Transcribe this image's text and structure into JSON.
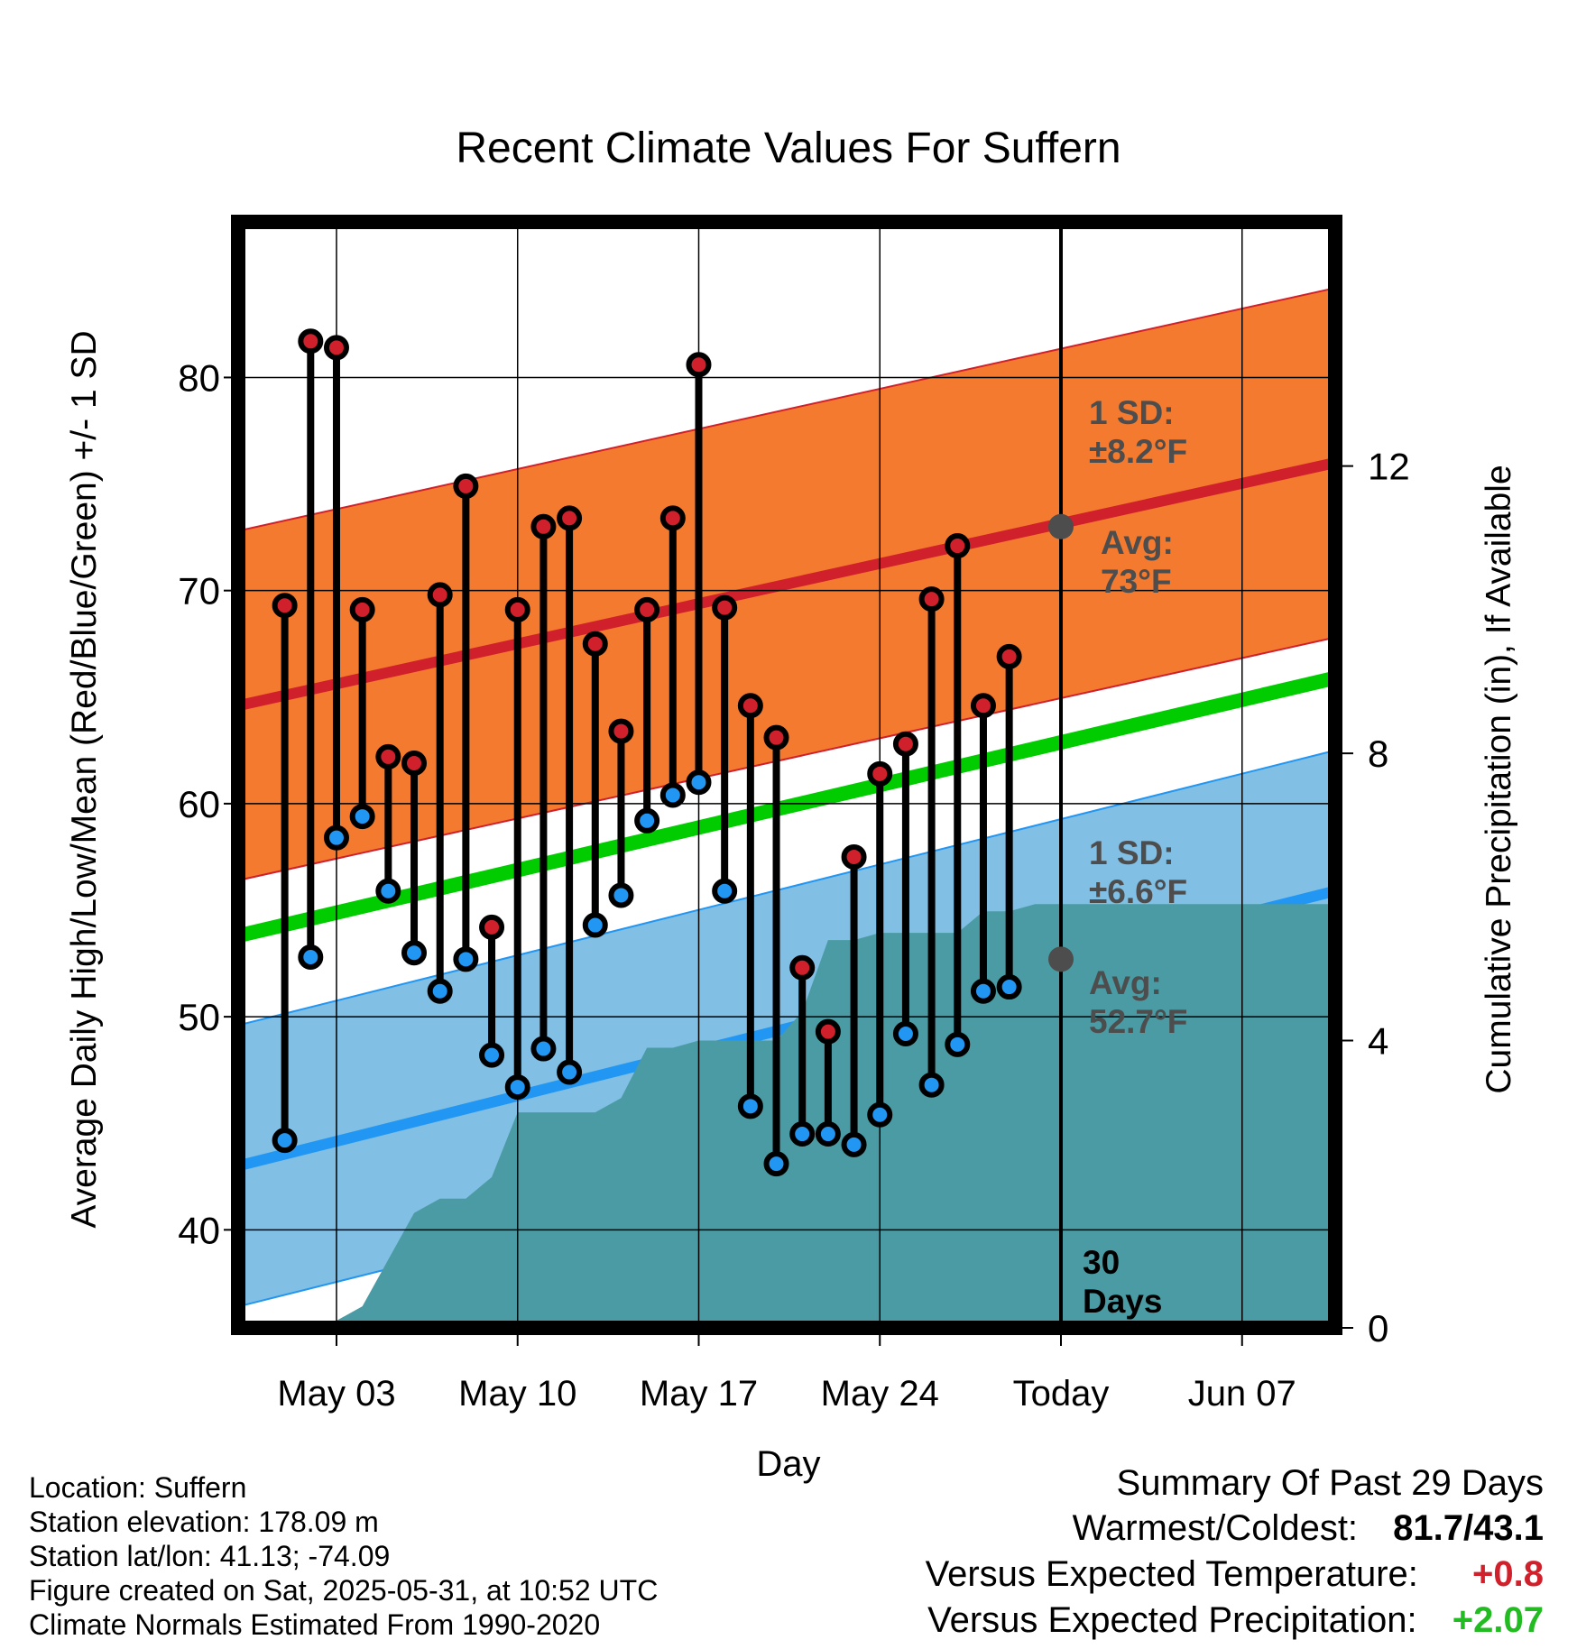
{
  "chart_data": {
    "type": "line",
    "title": "Recent Climate Values For Suffern",
    "xlabel": "Day",
    "ylabel": "Average Daily High/Low/Mean (Red/Blue/Green) +/- 1 SD",
    "y2label": "Cumulative Precipitation (in), If Available",
    "x_tick_labels": [
      "May 03",
      "May 10",
      "May 17",
      "May 24",
      "Today",
      "Jun 07"
    ],
    "x_tick_days": [
      3,
      10,
      17,
      24,
      31,
      38
    ],
    "xlim_days": [
      -0.8,
      41.6
    ],
    "today_day": 31,
    "ylim": [
      35.4,
      87.3
    ],
    "yticks": [
      40,
      50,
      60,
      70,
      80
    ],
    "y2lim": [
      0,
      15.4
    ],
    "y2ticks": [
      0,
      4,
      8,
      12
    ],
    "days": [
      1,
      2,
      3,
      4,
      5,
      6,
      7,
      8,
      9,
      10,
      11,
      12,
      13,
      14,
      15,
      16,
      17,
      18,
      19,
      20,
      21,
      22,
      23,
      24,
      25,
      26,
      27,
      28,
      29
    ],
    "highs": [
      69.3,
      81.7,
      81.4,
      69.1,
      62.2,
      61.9,
      69.8,
      74.9,
      54.2,
      69.1,
      73.0,
      73.4,
      67.5,
      63.4,
      69.1,
      73.4,
      80.6,
      69.2,
      64.6,
      63.1,
      52.3,
      49.3,
      57.5,
      61.4,
      62.8,
      69.6,
      72.1,
      64.6,
      66.9
    ],
    "lows": [
      44.2,
      52.8,
      58.4,
      59.4,
      55.9,
      53.0,
      51.2,
      52.7,
      48.2,
      46.7,
      48.5,
      47.4,
      54.3,
      55.7,
      59.2,
      60.4,
      61.0,
      55.9,
      45.8,
      43.1,
      44.5,
      44.5,
      44.0,
      45.4,
      49.2,
      46.8,
      48.7,
      51.2,
      51.4
    ],
    "normal_high": [
      64.6,
      76.0
    ],
    "normal_low": [
      43.0,
      55.9
    ],
    "normal_mean": [
      53.8,
      65.9
    ],
    "high_sd": 8.2,
    "low_sd": 6.6,
    "precip_cumulative": [
      [
        2.5,
        0.0
      ],
      [
        4,
        0.3
      ],
      [
        6,
        1.6
      ],
      [
        7,
        1.8
      ],
      [
        8,
        1.8
      ],
      [
        9,
        2.1
      ],
      [
        10,
        3.0
      ],
      [
        11,
        3.0
      ],
      [
        12,
        3.0
      ],
      [
        13,
        3.0
      ],
      [
        14,
        3.2
      ],
      [
        15,
        3.9
      ],
      [
        16,
        3.9
      ],
      [
        17,
        4.0
      ],
      [
        18,
        4.0
      ],
      [
        19,
        4.0
      ],
      [
        20,
        4.0
      ],
      [
        21,
        4.4
      ],
      [
        22,
        5.4
      ],
      [
        23,
        5.4
      ],
      [
        24,
        5.5
      ],
      [
        25,
        5.5
      ],
      [
        26,
        5.5
      ],
      [
        27,
        5.5
      ],
      [
        28,
        5.8
      ],
      [
        29,
        5.8
      ],
      [
        30,
        5.9
      ],
      [
        31,
        5.9
      ],
      [
        41.6,
        5.9
      ]
    ],
    "annotations": {
      "high_sd_label": "1 SD:",
      "high_sd_value": "±8.2°F",
      "high_avg_label": "Avg:",
      "high_avg_value": "73°F",
      "low_sd_label": "1 SD:",
      "low_sd_value": "±6.6°F",
      "low_avg_label": "Avg:",
      "low_avg_value": "52.7°F",
      "days_line1": "30",
      "days_line2": "Days"
    },
    "today_high_avg": 73,
    "today_low_avg": 52.7,
    "colors": {
      "high_band": "#f37a2f",
      "high_line": "#d0202b",
      "low_band": "#81bfe5",
      "low_line": "#2196f3",
      "mean_line": "#00cc00",
      "precip": "#4a9ba3",
      "high_dot": "#d0202b",
      "low_dot": "#2196f3",
      "annotation_text": "#4d4d4d"
    },
    "grid": true
  },
  "info": {
    "location": "Location: Suffern",
    "elevation": "Station elevation: 178.09 m",
    "latlon": "Station lat/lon: 41.13; -74.09",
    "created": "Figure created on Sat, 2025-05-31, at 10:52 UTC",
    "normals": "Climate Normals Estimated From 1990-2020"
  },
  "summary": {
    "title": "Summary Of Past 29 Days",
    "warmest_label": "Warmest/Coldest:",
    "warmest_value": "81.7/43.1",
    "temp_label": "Versus Expected Temperature:",
    "temp_value": "+0.8",
    "temp_color": "#d0202b",
    "precip_label": "Versus Expected Precipitation:",
    "precip_value": "+2.07",
    "precip_color": "#22bb22"
  }
}
